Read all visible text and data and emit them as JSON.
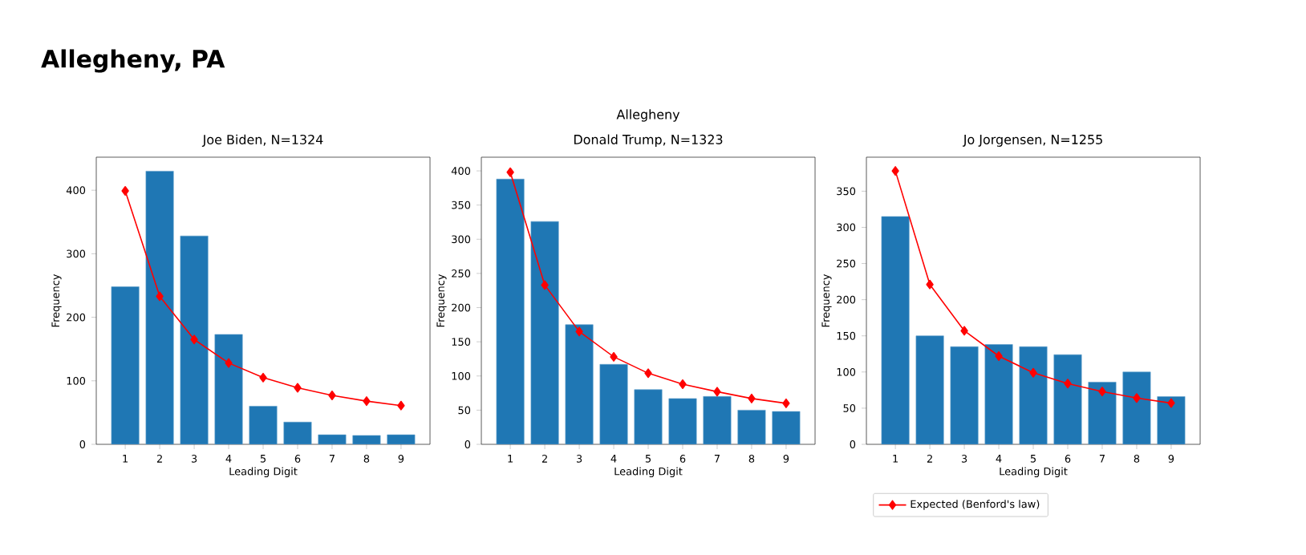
{
  "chart_data": [
    {
      "type": "bar",
      "title": "Joe Biden, N=1324",
      "xlabel": "Leading Digit",
      "ylabel": "Frequency",
      "annotations": [
        "Allegheny, PA"
      ],
      "x": [
        1,
        2,
        3,
        4,
        5,
        6,
        7,
        8,
        9
      ],
      "xlim": [
        0.16,
        9.84
      ],
      "xticks": [
        1,
        2,
        3,
        4,
        5,
        6,
        7,
        8,
        9
      ],
      "ylim": [
        0,
        452
      ],
      "yticks": [
        0,
        100,
        200,
        300,
        400
      ],
      "series": [
        {
          "color": "#1f77b4",
          "values": [
            248,
            430,
            328,
            173,
            60,
            35,
            15,
            14,
            15
          ]
        },
        {
          "type": "line",
          "color": "#ff0000",
          "marker": "diamond",
          "values": [
            399,
            233,
            165,
            128,
            105,
            89,
            77,
            68,
            61
          ]
        }
      ]
    },
    {
      "type": "bar",
      "title": "Donald Trump, N=1323",
      "xlabel": "Leading Digit",
      "ylabel": "Frequency",
      "annotations": [
        "Allegheny"
      ],
      "x": [
        1,
        2,
        3,
        4,
        5,
        6,
        7,
        8,
        9
      ],
      "xlim": [
        0.16,
        9.84
      ],
      "xticks": [
        1,
        2,
        3,
        4,
        5,
        6,
        7,
        8,
        9
      ],
      "ylim": [
        0,
        420
      ],
      "yticks": [
        0,
        50,
        100,
        150,
        200,
        250,
        300,
        350,
        400
      ],
      "series": [
        {
          "color": "#1f77b4",
          "values": [
            388,
            326,
            175,
            117,
            80,
            67,
            70,
            50,
            48
          ]
        },
        {
          "type": "line",
          "color": "#ff0000",
          "marker": "diamond",
          "values": [
            398,
            233,
            165,
            128,
            104,
            88,
            77,
            67,
            60
          ]
        }
      ]
    },
    {
      "type": "bar",
      "title": "Jo Jorgensen, N=1255",
      "xlabel": "Leading Digit",
      "ylabel": "Frequency",
      "legend": "bottom",
      "x": [
        1,
        2,
        3,
        4,
        5,
        6,
        7,
        8,
        9
      ],
      "xlim": [
        0.16,
        9.84
      ],
      "xticks": [
        1,
        2,
        3,
        4,
        5,
        6,
        7,
        8,
        9
      ],
      "ylim": [
        0,
        397
      ],
      "yticks": [
        0,
        50,
        100,
        150,
        200,
        250,
        300,
        350
      ],
      "series": [
        {
          "color": "#1f77b4",
          "values": [
            315,
            150,
            135,
            138,
            135,
            124,
            86,
            100,
            66
          ]
        },
        {
          "type": "line",
          "color": "#ff0000",
          "marker": "diamond",
          "name": "Expected (Benford's law)",
          "values": [
            378,
            221,
            157,
            122,
            99,
            84,
            73,
            64,
            57
          ]
        }
      ]
    }
  ]
}
